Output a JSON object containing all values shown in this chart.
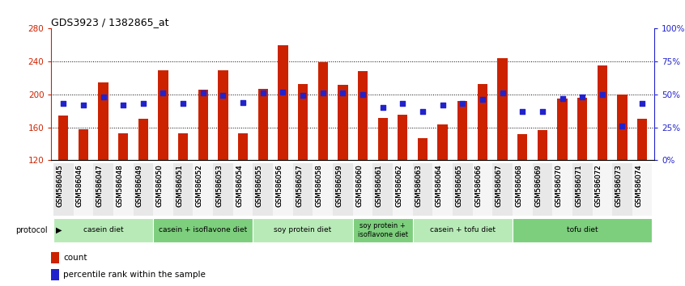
{
  "title": "GDS3923 / 1382865_at",
  "samples": [
    "GSM586045",
    "GSM586046",
    "GSM586047",
    "GSM586048",
    "GSM586049",
    "GSM586050",
    "GSM586051",
    "GSM586052",
    "GSM586053",
    "GSM586054",
    "GSM586055",
    "GSM586056",
    "GSM586057",
    "GSM586058",
    "GSM586059",
    "GSM586060",
    "GSM586061",
    "GSM586062",
    "GSM586063",
    "GSM586064",
    "GSM586065",
    "GSM586066",
    "GSM586067",
    "GSM586068",
    "GSM586069",
    "GSM586070",
    "GSM586071",
    "GSM586072",
    "GSM586073",
    "GSM586074"
  ],
  "counts": [
    174,
    158,
    215,
    153,
    170,
    229,
    153,
    206,
    229,
    153,
    207,
    260,
    213,
    239,
    212,
    228,
    171,
    175,
    147,
    163,
    192,
    213,
    244,
    152,
    157,
    195,
    196,
    235,
    200,
    170
  ],
  "percentile_ranks": [
    43,
    42,
    48,
    42,
    43,
    51,
    43,
    51,
    49,
    44,
    51,
    52,
    49,
    51,
    51,
    50,
    40,
    43,
    37,
    42,
    43,
    46,
    51,
    37,
    37,
    47,
    48,
    50,
    26,
    43
  ],
  "group_defs": [
    [
      0,
      5,
      "casein diet"
    ],
    [
      5,
      10,
      "casein + isoflavone diet"
    ],
    [
      10,
      15,
      "soy protein diet"
    ],
    [
      15,
      18,
      "soy protein +\nisoflavone diet"
    ],
    [
      18,
      23,
      "casein + tofu diet"
    ],
    [
      23,
      30,
      "tofu diet"
    ]
  ],
  "ymin": 120,
  "ymax": 280,
  "yticks": [
    120,
    160,
    200,
    240,
    280
  ],
  "bar_color": "#cc2200",
  "dot_color": "#2222cc",
  "bar_width": 0.5,
  "background_color": "#ffffff",
  "tick_label_color_left": "#cc2200",
  "tick_label_color_right": "#2222cc",
  "group_colors_alt": [
    "#b8eab8",
    "#7dce7d"
  ]
}
